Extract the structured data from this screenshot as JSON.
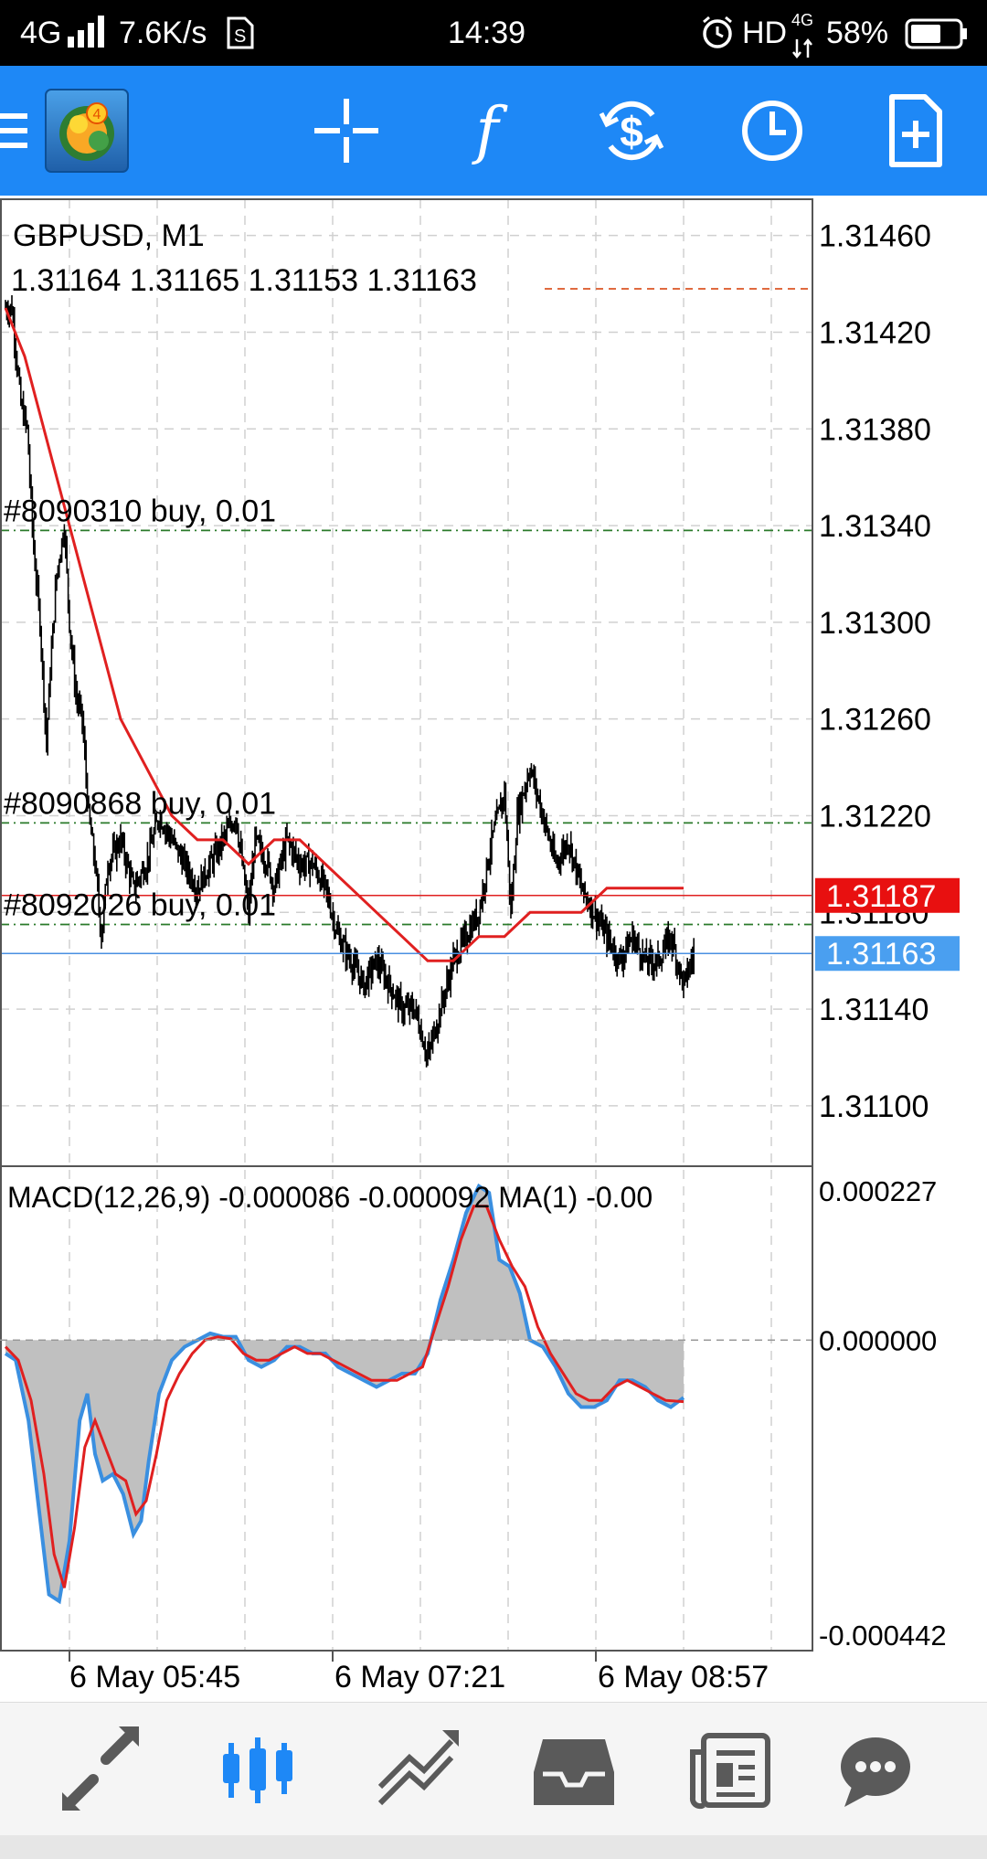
{
  "status_bar": {
    "network": "4G",
    "speed": "7.6K/s",
    "time": "14:39",
    "hd": "HD",
    "network_right": "4G",
    "battery": "58%",
    "icons": [
      "signal-icon",
      "sim-icon",
      "alarm-icon",
      "battery-icon"
    ]
  },
  "toolbar": {
    "items": [
      "menu-icon",
      "mt4-logo-icon",
      "crosshair-icon",
      "indicators-icon",
      "trade-icon",
      "timeframe-icon",
      "new-order-icon"
    ],
    "logo_badge": "4"
  },
  "chart": {
    "symbol_label": "GBPUSD, M1",
    "ohlc_label": "1.31164 1.31165 1.31153 1.31163",
    "y_axis_ticks": [
      "1.31460",
      "1.31420",
      "1.31380",
      "1.31340",
      "1.31300",
      "1.31260",
      "1.31220",
      "1.31180",
      "1.31140",
      "1.31100"
    ],
    "ask_price": "1.31187",
    "bid_price": "1.31163",
    "orders": [
      {
        "label": "#8090310 buy, 0.01",
        "price": 1.31338
      },
      {
        "label": "#8090868 buy, 0.01",
        "price": 1.31217
      },
      {
        "label": "#8092026 buy, 0.01",
        "price": 1.31175
      }
    ],
    "x_axis_labels": [
      "6 May 05:45",
      "6 May 07:21",
      "6 May 08:57"
    ],
    "colors": {
      "ma_line": "#e02020",
      "ask_line": "#e02020",
      "bid_line": "#4a90e2",
      "order_line": "#2a7a2a",
      "bid_tag": "#4a9ff0",
      "ask_tag": "#e81010",
      "candle": "#000000"
    }
  },
  "macd": {
    "label": "MACD(12,26,9) -0.000086 -0.000092 MA(1) -0.00",
    "y_axis_ticks": [
      "0.000227",
      "0.000000",
      "-0.000442"
    ],
    "colors": {
      "histogram": "#c0c0c0",
      "main": "#3a8fe0",
      "signal": "#e02020"
    }
  },
  "bottom_nav": {
    "items": [
      "quotes-icon",
      "chart-icon",
      "trade-icon",
      "history-icon",
      "news-icon",
      "chat-icon"
    ],
    "active_index": 1,
    "colors": {
      "active": "#1e88f6",
      "inactive": "#5a5a5a"
    }
  },
  "chart_data": [
    {
      "type": "candlestick",
      "title": "GBPUSD, M1",
      "ylim": [
        1.31075,
        1.31475
      ],
      "x_tick_labels": [
        "6 May 05:45",
        "6 May 07:21",
        "6 May 08:57"
      ],
      "close_anchors": [
        [
          0,
          1.3143
        ],
        [
          5,
          1.3143
        ],
        [
          12,
          1.3139
        ],
        [
          17,
          1.3138
        ],
        [
          22,
          1.3133
        ],
        [
          27,
          1.313
        ],
        [
          32,
          1.3125
        ],
        [
          35,
          1.3128
        ],
        [
          40,
          1.3132
        ],
        [
          46,
          1.3134
        ],
        [
          50,
          1.313
        ],
        [
          55,
          1.3127
        ],
        [
          60,
          1.3126
        ],
        [
          65,
          1.3122
        ],
        [
          70,
          1.312
        ],
        [
          75,
          1.3117
        ],
        [
          80,
          1.312
        ],
        [
          90,
          1.3121
        ],
        [
          100,
          1.3119
        ],
        [
          110,
          1.312
        ],
        [
          120,
          1.3122
        ],
        [
          130,
          1.3121
        ],
        [
          140,
          1.312
        ],
        [
          150,
          1.3119
        ],
        [
          160,
          1.312
        ],
        [
          170,
          1.3121
        ],
        [
          180,
          1.3122
        ],
        [
          185,
          1.312
        ],
        [
          190,
          1.3118
        ],
        [
          195,
          1.3121
        ],
        [
          205,
          1.312
        ],
        [
          210,
          1.3119
        ],
        [
          220,
          1.3121
        ],
        [
          230,
          1.312
        ],
        [
          240,
          1.312
        ],
        [
          250,
          1.3119
        ],
        [
          260,
          1.3117
        ],
        [
          270,
          1.3116
        ],
        [
          280,
          1.3115
        ],
        [
          290,
          1.3116
        ],
        [
          300,
          1.3115
        ],
        [
          310,
          1.3114
        ],
        [
          320,
          1.3114
        ],
        [
          330,
          1.3112
        ],
        [
          340,
          1.3114
        ],
        [
          350,
          1.3116
        ],
        [
          360,
          1.3117
        ],
        [
          370,
          1.3118
        ],
        [
          380,
          1.3121
        ],
        [
          390,
          1.3123
        ],
        [
          395,
          1.3118
        ],
        [
          400,
          1.3122
        ],
        [
          410,
          1.3124
        ],
        [
          420,
          1.3122
        ],
        [
          430,
          1.312
        ],
        [
          440,
          1.3121
        ],
        [
          450,
          1.3119
        ],
        [
          460,
          1.3118
        ],
        [
          470,
          1.3117
        ],
        [
          480,
          1.3116
        ],
        [
          490,
          1.3117
        ],
        [
          500,
          1.3116
        ],
        [
          510,
          1.3116
        ],
        [
          520,
          1.3117
        ],
        [
          530,
          1.3115
        ],
        [
          538,
          1.31163
        ]
      ],
      "ma_series": [
        [
          0,
          1.3143
        ],
        [
          15,
          1.3141
        ],
        [
          30,
          1.3138
        ],
        [
          45,
          1.3135
        ],
        [
          60,
          1.3132
        ],
        [
          75,
          1.3129
        ],
        [
          90,
          1.3126
        ],
        [
          110,
          1.3124
        ],
        [
          130,
          1.3122
        ],
        [
          150,
          1.3121
        ],
        [
          170,
          1.3121
        ],
        [
          190,
          1.312
        ],
        [
          210,
          1.3121
        ],
        [
          230,
          1.3121
        ],
        [
          250,
          1.312
        ],
        [
          270,
          1.3119
        ],
        [
          290,
          1.3118
        ],
        [
          310,
          1.3117
        ],
        [
          330,
          1.3116
        ],
        [
          350,
          1.3116
        ],
        [
          370,
          1.3117
        ],
        [
          390,
          1.3117
        ],
        [
          410,
          1.3118
        ],
        [
          430,
          1.3118
        ],
        [
          450,
          1.3118
        ],
        [
          470,
          1.3119
        ],
        [
          490,
          1.3119
        ],
        [
          510,
          1.3119
        ],
        [
          530,
          1.3119
        ]
      ]
    },
    {
      "type": "line",
      "title": "MACD(12,26,9)",
      "ylim": [
        -0.000442,
        0.000227
      ],
      "x_tick_labels": [
        "6 May 05:45",
        "6 May 07:21",
        "6 May 08:57"
      ],
      "macd_series": [
        [
          0,
          -2e-05
        ],
        [
          8,
          -3e-05
        ],
        [
          18,
          -0.00012
        ],
        [
          26,
          -0.00025
        ],
        [
          34,
          -0.00038
        ],
        [
          42,
          -0.00039
        ],
        [
          50,
          -0.0003
        ],
        [
          58,
          -0.00012
        ],
        [
          64,
          -8e-05
        ],
        [
          70,
          -0.00017
        ],
        [
          76,
          -0.00021
        ],
        [
          84,
          -0.0002
        ],
        [
          92,
          -0.00023
        ],
        [
          100,
          -0.00029
        ],
        [
          106,
          -0.00027
        ],
        [
          112,
          -0.00018
        ],
        [
          120,
          -8e-05
        ],
        [
          130,
          -3e-05
        ],
        [
          140,
          -1e-05
        ],
        [
          150,
          0
        ],
        [
          160,
          1e-05
        ],
        [
          170,
          5e-06
        ],
        [
          180,
          5e-06
        ],
        [
          190,
          -3e-05
        ],
        [
          200,
          -4e-05
        ],
        [
          210,
          -3e-05
        ],
        [
          220,
          -1e-05
        ],
        [
          230,
          -1e-05
        ],
        [
          240,
          -2e-05
        ],
        [
          250,
          -2e-05
        ],
        [
          260,
          -4e-05
        ],
        [
          270,
          -5e-05
        ],
        [
          280,
          -6e-05
        ],
        [
          290,
          -7e-05
        ],
        [
          300,
          -6e-05
        ],
        [
          310,
          -5e-05
        ],
        [
          320,
          -5e-05
        ],
        [
          330,
          -2e-05
        ],
        [
          340,
          6e-05
        ],
        [
          350,
          0.00012
        ],
        [
          360,
          0.00019
        ],
        [
          370,
          0.00023
        ],
        [
          378,
          0.00022
        ],
        [
          386,
          0.00012
        ],
        [
          394,
          0.00011
        ],
        [
          402,
          7e-05
        ],
        [
          410,
          0.0
        ],
        [
          420,
          -1e-05
        ],
        [
          430,
          -4e-05
        ],
        [
          440,
          -8e-05
        ],
        [
          450,
          -0.0001
        ],
        [
          460,
          -0.0001
        ],
        [
          470,
          -9e-05
        ],
        [
          480,
          -6e-05
        ],
        [
          490,
          -6e-05
        ],
        [
          500,
          -7e-05
        ],
        [
          510,
          -9e-05
        ],
        [
          520,
          -0.0001
        ],
        [
          530,
          -8.6e-05
        ]
      ],
      "signal_series": [
        [
          0,
          -1e-05
        ],
        [
          10,
          -3e-05
        ],
        [
          20,
          -9e-05
        ],
        [
          30,
          -0.0002
        ],
        [
          38,
          -0.00032
        ],
        [
          46,
          -0.00037
        ],
        [
          54,
          -0.00028
        ],
        [
          62,
          -0.00016
        ],
        [
          70,
          -0.00012
        ],
        [
          78,
          -0.00016
        ],
        [
          86,
          -0.0002
        ],
        [
          94,
          -0.00021
        ],
        [
          102,
          -0.00026
        ],
        [
          110,
          -0.00024
        ],
        [
          118,
          -0.00017
        ],
        [
          126,
          -9e-05
        ],
        [
          136,
          -5e-05
        ],
        [
          146,
          -2e-05
        ],
        [
          156,
          0
        ],
        [
          166,
          5e-06
        ],
        [
          176,
          2e-06
        ],
        [
          186,
          -2e-05
        ],
        [
          196,
          -3e-05
        ],
        [
          206,
          -3e-05
        ],
        [
          216,
          -2e-05
        ],
        [
          226,
          -1e-05
        ],
        [
          236,
          -2e-05
        ],
        [
          246,
          -2e-05
        ],
        [
          256,
          -3e-05
        ],
        [
          266,
          -4e-05
        ],
        [
          276,
          -5e-05
        ],
        [
          286,
          -6e-05
        ],
        [
          296,
          -6e-05
        ],
        [
          306,
          -6e-05
        ],
        [
          316,
          -5e-05
        ],
        [
          326,
          -4e-05
        ],
        [
          336,
          2e-05
        ],
        [
          346,
          8e-05
        ],
        [
          356,
          0.00015
        ],
        [
          366,
          0.0002
        ],
        [
          376,
          0.0002
        ],
        [
          386,
          0.00015
        ],
        [
          396,
          0.00011
        ],
        [
          406,
          8e-05
        ],
        [
          416,
          2e-05
        ],
        [
          426,
          -2e-05
        ],
        [
          436,
          -5e-05
        ],
        [
          446,
          -8e-05
        ],
        [
          456,
          -9e-05
        ],
        [
          466,
          -9e-05
        ],
        [
          476,
          -7e-05
        ],
        [
          486,
          -6e-05
        ],
        [
          496,
          -7e-05
        ],
        [
          506,
          -8e-05
        ],
        [
          516,
          -9e-05
        ],
        [
          530,
          -9.2e-05
        ]
      ]
    }
  ]
}
